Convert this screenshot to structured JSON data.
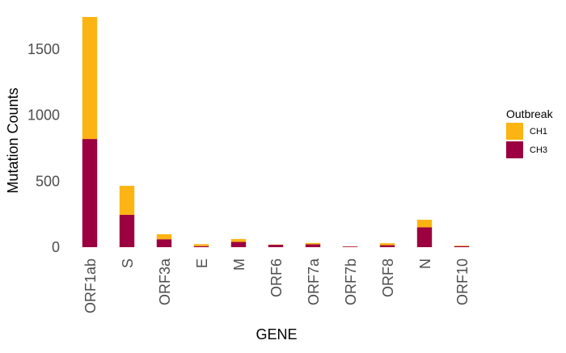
{
  "chart_data": {
    "type": "bar",
    "stacked": true,
    "categories": [
      "ORF1ab",
      "S",
      "ORF3a",
      "E",
      "M",
      "ORF6",
      "ORF7a",
      "ORF7b",
      "ORF8",
      "N",
      "ORF10"
    ],
    "series": [
      {
        "name": "CH3",
        "color": "#9C0040",
        "values": [
          820,
          245,
          60,
          8,
          40,
          18,
          22,
          5,
          15,
          150,
          8
        ]
      },
      {
        "name": "CH1",
        "color": "#FBB413",
        "values": [
          925,
          220,
          38,
          15,
          22,
          2,
          10,
          2,
          15,
          58,
          4
        ]
      }
    ],
    "title": "",
    "xlabel": "GENE",
    "ylabel": "Mutation Counts",
    "ylim": [
      0,
      1750
    ],
    "yticks": [
      0,
      500,
      1000,
      1500
    ],
    "grid": false,
    "legend": {
      "title": "Outbreak",
      "position": "right",
      "entries": [
        "CH1",
        "CH3"
      ]
    }
  }
}
